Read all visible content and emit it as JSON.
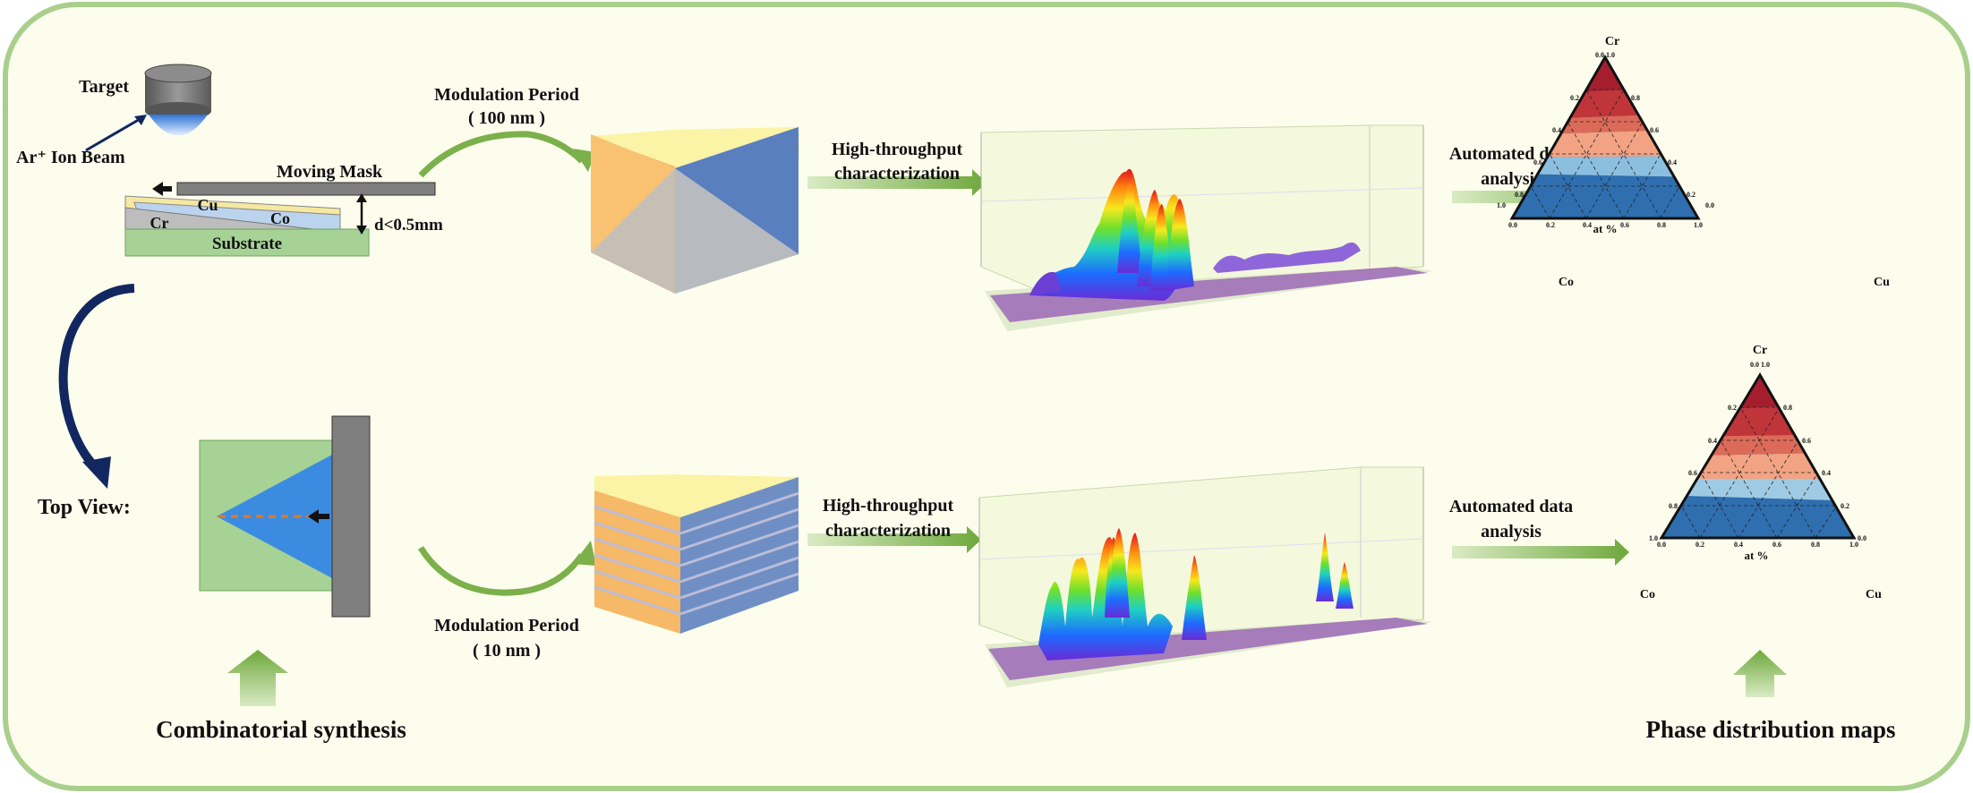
{
  "colors": {
    "panel_bg": "#fdfded",
    "panel_border": "#a9cf8c",
    "arrow_green": "#7bb04b",
    "dark_blue_arrow": "#12275f",
    "surface_purple": "#a070b8",
    "ternary_red_dark": "#a51e2e",
    "ternary_red": "#cf4a46",
    "ternary_salmon": "#f2a383",
    "ternary_lightblue": "#9ecae3",
    "ternary_blue": "#3d7fbe",
    "ternary_darkblue": "#1f5a9b"
  },
  "synthesis": {
    "target": "Target",
    "ion_beam": "Ar⁺ Ion Beam",
    "moving_mask": "Moving Mask",
    "cu": "Cu",
    "co": "Co",
    "cr": "Cr",
    "gap": "d<0.5mm",
    "substrate": "Substrate",
    "top_view": "Top View:",
    "caption": "Combinatorial synthesis"
  },
  "top_row": {
    "period_line1": "Modulation Period",
    "period_line2": "( 100 nm )",
    "char_line1": "High-throughput",
    "char_line2": "characterization",
    "auto_line1": "Automated data",
    "auto_line2": "analysis"
  },
  "bottom_row": {
    "period_line1": "Modulation Period",
    "period_line2": "( 10 nm )",
    "char_line1": "High-throughput",
    "char_line2": "characterization",
    "auto_line1": "Automated data",
    "auto_line2": "analysis"
  },
  "ternary": {
    "top": "Cr",
    "left": "Co",
    "right": "Cu",
    "axis_title": "at %",
    "base_ticks": [
      "0.0",
      "0.2",
      "0.4",
      "0.6",
      "0.8",
      "1.0"
    ],
    "left_ticks": [
      "0.2",
      "0.4",
      "0.6",
      "0.8",
      "1.0"
    ],
    "right_ticks": [
      "0.8",
      "0.6",
      "0.4",
      "0.2",
      "0.0"
    ],
    "apex_tick": "0.0 1.0"
  },
  "phase_caption": "Phase distribution maps"
}
